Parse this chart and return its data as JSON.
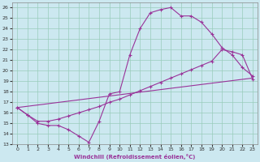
{
  "xlabel": "Windchill (Refroidissement éolien,°C)",
  "bg_color": "#cce8f0",
  "grid_color": "#99ccbb",
  "line_color": "#993399",
  "xlim": [
    -0.5,
    23.5
  ],
  "ylim": [
    13,
    26.5
  ],
  "xticks": [
    0,
    1,
    2,
    3,
    4,
    5,
    6,
    7,
    8,
    9,
    10,
    11,
    12,
    13,
    14,
    15,
    16,
    17,
    18,
    19,
    20,
    21,
    22,
    23
  ],
  "yticks": [
    13,
    14,
    15,
    16,
    17,
    18,
    19,
    20,
    21,
    22,
    23,
    24,
    25,
    26
  ],
  "line1_x": [
    0,
    1,
    2,
    3,
    4,
    5,
    6,
    7,
    8,
    9,
    10,
    11,
    12,
    13,
    14,
    15,
    16,
    17,
    18,
    19,
    20,
    21,
    22,
    23
  ],
  "line1_y": [
    16.5,
    15.8,
    15.0,
    14.8,
    14.8,
    14.4,
    13.8,
    13.2,
    15.2,
    17.8,
    18.0,
    21.5,
    24.0,
    25.5,
    25.8,
    26.0,
    25.2,
    25.2,
    24.6,
    23.5,
    22.2,
    21.5,
    20.3,
    19.5
  ],
  "line2_x": [
    0,
    1,
    2,
    3,
    4,
    5,
    6,
    7,
    8,
    9,
    10,
    11,
    12,
    13,
    14,
    15,
    16,
    17,
    18,
    19,
    20,
    21,
    22,
    23
  ],
  "line2_y": [
    16.5,
    15.8,
    15.2,
    15.2,
    15.4,
    15.7,
    16.0,
    16.3,
    16.6,
    17.0,
    17.3,
    17.7,
    18.1,
    18.5,
    18.9,
    19.3,
    19.7,
    20.1,
    20.5,
    20.9,
    22.0,
    21.8,
    21.5,
    19.2
  ],
  "line3_x": [
    0,
    23
  ],
  "line3_y": [
    16.5,
    19.3
  ],
  "figsize": [
    3.2,
    2.0
  ],
  "dpi": 100
}
